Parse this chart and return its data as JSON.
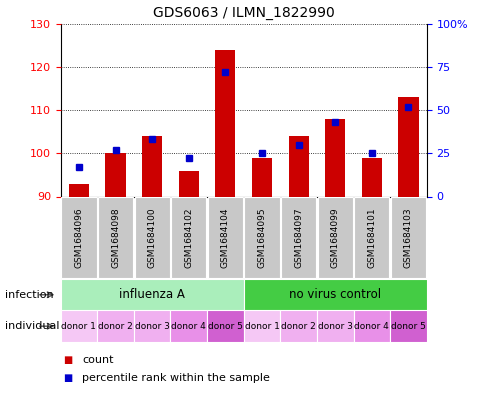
{
  "title": "GDS6063 / ILMN_1822990",
  "samples": [
    "GSM1684096",
    "GSM1684098",
    "GSM1684100",
    "GSM1684102",
    "GSM1684104",
    "GSM1684095",
    "GSM1684097",
    "GSM1684099",
    "GSM1684101",
    "GSM1684103"
  ],
  "counts": [
    93,
    100,
    104,
    96,
    124,
    99,
    104,
    108,
    99,
    113
  ],
  "percentiles": [
    17,
    27,
    33,
    22,
    72,
    25,
    30,
    43,
    25,
    52
  ],
  "ylim_left": [
    90,
    130
  ],
  "ylim_right": [
    0,
    100
  ],
  "yticks_left": [
    90,
    100,
    110,
    120,
    130
  ],
  "yticks_right": [
    0,
    25,
    50,
    75,
    100
  ],
  "ytick_labels_right": [
    "0",
    "25",
    "50",
    "75",
    "100%"
  ],
  "bar_color": "#cc0000",
  "dot_color": "#0000cc",
  "infection_groups": [
    {
      "label": "influenza A",
      "start": 0,
      "end": 5,
      "color": "#aaeebb"
    },
    {
      "label": "no virus control",
      "start": 5,
      "end": 10,
      "color": "#44cc44"
    }
  ],
  "individual_labels": [
    "donor 1",
    "donor 2",
    "donor 3",
    "donor 4",
    "donor 5",
    "donor 1",
    "donor 2",
    "donor 3",
    "donor 4",
    "donor 5"
  ],
  "individual_colors": [
    "#f5c8f5",
    "#f0b0f0",
    "#f0b0f0",
    "#e890e8",
    "#d060d0",
    "#f5c8f5",
    "#f0b0f0",
    "#f0b0f0",
    "#e890e8",
    "#d060d0"
  ],
  "legend_count_label": "count",
  "legend_pct_label": "percentile rank within the sample",
  "infection_row_label": "infection",
  "individual_row_label": "individual",
  "background_color": "#ffffff",
  "base_value": 90,
  "bar_width": 0.55
}
